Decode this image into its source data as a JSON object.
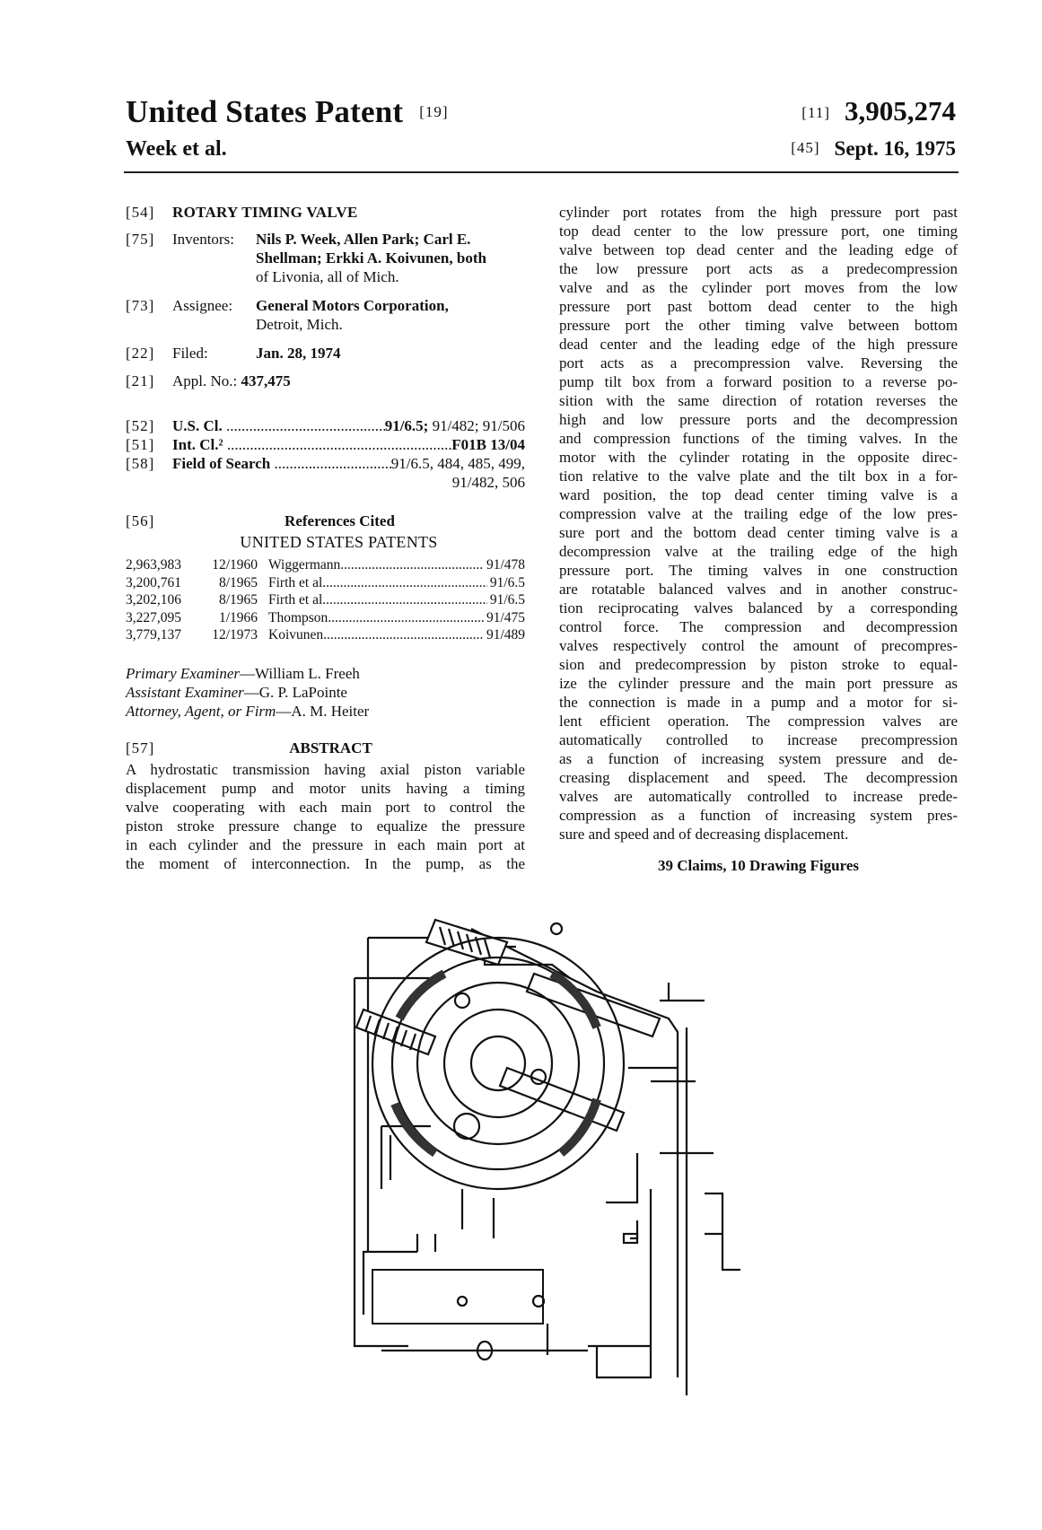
{
  "header": {
    "title": "United States Patent",
    "title_code": "[19]",
    "inventors_short": "Week et al.",
    "number_code": "[11]",
    "patent_number": "3,905,274",
    "date_code": "[45]",
    "date": "Sept. 16, 1975"
  },
  "biblio": {
    "title_code": "[54]",
    "title": "ROTARY TIMING VALVE",
    "inventors_code": "[75]",
    "inventors_label": "Inventors:",
    "inventors_lines": [
      "Nils P. Week, Allen Park; Carl E.",
      "Shellman; Erkki A. Koivunen, both",
      "of Livonia, all of Mich."
    ],
    "assignee_code": "[73]",
    "assignee_label": "Assignee:",
    "assignee_lines": [
      "General Motors Corporation,",
      "Detroit, Mich."
    ],
    "filed_code": "[22]",
    "filed_label": "Filed:",
    "filed": "Jan. 28, 1974",
    "appl_code": "[21]",
    "appl_label": "Appl. No.:",
    "appl": "437,475",
    "us_cl_code": "[52]",
    "us_cl_label": "U.S. Cl.",
    "us_cl_main": "91/6.5;",
    "us_cl_rest": " 91/482; 91/506",
    "int_cl_code": "[51]",
    "int_cl_label": "Int. Cl.²",
    "int_cl": "F01B 13/04",
    "search_code": "[58]",
    "search_label": "Field of Search",
    "search_line1": "91/6.5, 484, 485, 499,",
    "search_line2": "91/482, 506"
  },
  "references": {
    "code": "[56]",
    "title": "References Cited",
    "subtitle": "UNITED STATES PATENTS",
    "rows": [
      {
        "number": "2,963,983",
        "date": "12/1960",
        "name": "Wiggermann",
        "class": "91/478"
      },
      {
        "number": "3,200,761",
        "date": "8/1965",
        "name": "Firth et al.",
        "class": "91/6.5"
      },
      {
        "number": "3,202,106",
        "date": "8/1965",
        "name": "Firth et al.",
        "class": "91/6.5"
      },
      {
        "number": "3,227,095",
        "date": "1/1966",
        "name": "Thompson",
        "class": "91/475"
      },
      {
        "number": "3,779,137",
        "date": "12/1973",
        "name": "Koivunen",
        "class": "91/489"
      }
    ]
  },
  "examiners": {
    "primary_label": "Primary Examiner",
    "primary": "—William L. Freeh",
    "assistant_label": "Assistant Examiner",
    "assistant": "—G. P. LaPointe",
    "attorney_label": "Attorney, Agent, or Firm",
    "attorney": "—A. M. Heiter"
  },
  "abstract": {
    "code": "[57]",
    "title": "ABSTRACT",
    "left_lines": [
      "A hydrostatic transmission having axial piston variable",
      "displacement pump and motor units having a timing",
      "valve cooperating with each main port to control the",
      "piston stroke pressure change to equalize the pressure",
      "in each cylinder and the pressure in each main port at",
      "the moment of interconnection. In the pump, as the"
    ],
    "right_lines": [
      "cylinder port rotates from the high pressure port past",
      "top dead center to the low pressure port, one timing",
      "valve between top dead center and the leading edge of",
      "the low pressure port acts as a predecompression",
      "valve and as the cylinder port moves from the low",
      "pressure port past bottom dead center to the high",
      "pressure port the other timing valve between bottom",
      "dead center and the leading edge of the high pressure",
      "port acts as a precompression valve. Reversing the",
      "pump tilt box from a forward position to a reverse po-",
      "sition with the same direction of rotation reverses the",
      "high and low pressure ports and the decompression",
      "and compression functions of the timing valves. In the",
      "motor with the cylinder rotating in the opposite direc-",
      "tion relative to the valve plate and the tilt box in a for-",
      "ward position, the top dead center timing valve is a",
      "compression valve at the trailing edge of the low pres-",
      "sure port and the bottom dead center timing valve is a",
      "decompression valve at the trailing edge of the high",
      "pressure port. The timing valves in one construction",
      "are rotatable balanced valves and in another construc-",
      "tion reciprocating valves balanced by a corresponding",
      "control force. The compression and decompression",
      "valves respectively control the amount of precompres-",
      "sion and predecompression by piston stroke to equal-",
      "ize the cylinder pressure and the main port pressure as",
      "the connection is made in a pump and a motor for si-",
      "lent efficient operation. The compression valves are",
      "automatically controlled to increase precompression",
      "as a function of increasing system pressure and de-",
      "creasing displacement and speed. The decompression",
      "valves are automatically controlled to increase prede-",
      "compression as a function of increasing system pres-",
      "sure and speed and of decreasing displacement."
    ],
    "claims": "39 Claims, 10 Drawing Figures"
  }
}
